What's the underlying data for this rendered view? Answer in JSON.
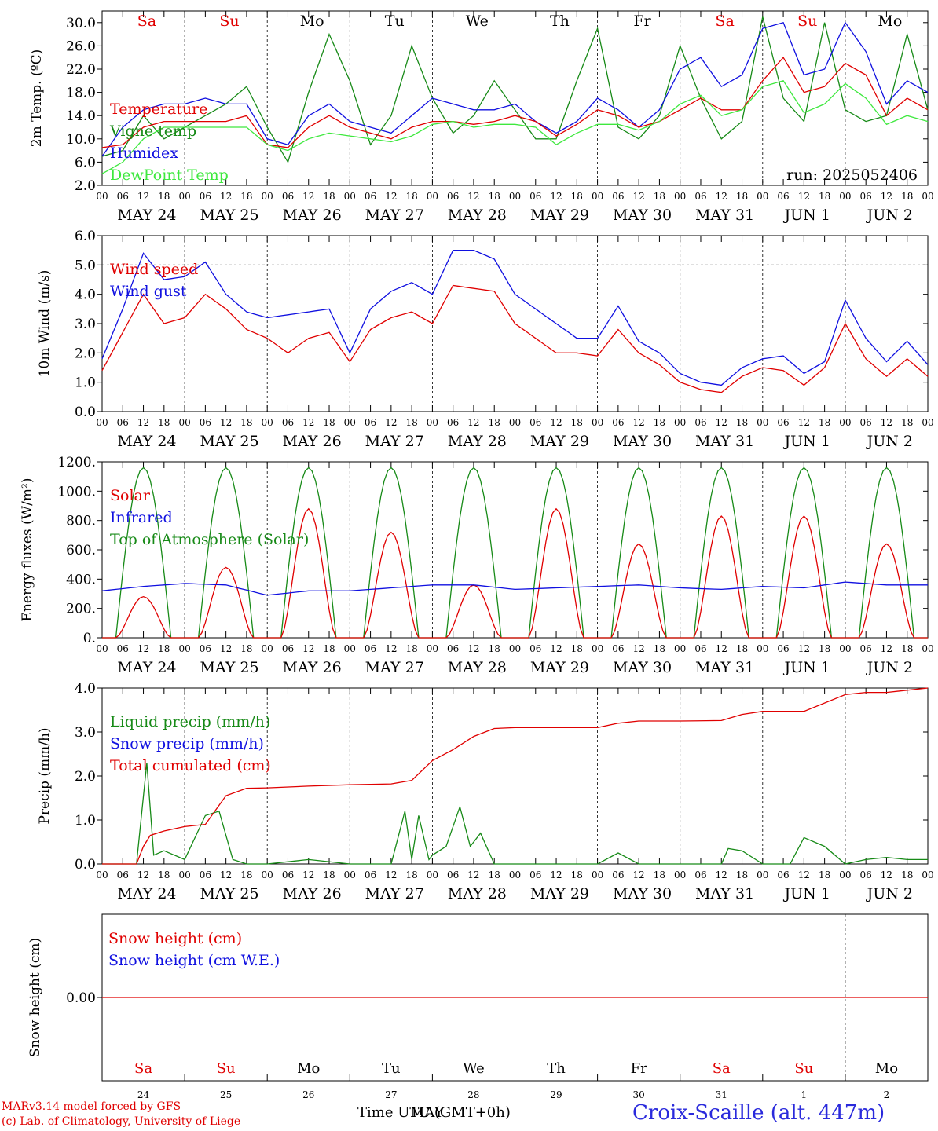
{
  "run_label": "run: 2025052406",
  "days": {
    "weekday_top": [
      "Sa",
      "Su",
      "Mo",
      "Tu",
      "We",
      "Th",
      "Fr",
      "Sa",
      "Su",
      "Mo"
    ],
    "weekday_colors": [
      "#e00000",
      "#e00000",
      "#000000",
      "#000000",
      "#000000",
      "#000000",
      "#000000",
      "#e00000",
      "#e00000",
      "#000000"
    ],
    "date_labels": [
      "MAY 24",
      "MAY 25",
      "MAY 26",
      "MAY 27",
      "MAY 28",
      "MAY 29",
      "MAY 30",
      "MAY 31",
      "JUN  1",
      "JUN  2"
    ],
    "hour_ticks": [
      "00",
      "06",
      "12",
      "18"
    ],
    "day_numbers": [
      "24",
      "25",
      "26",
      "27",
      "28",
      "29",
      "30",
      "31",
      "1",
      "2"
    ]
  },
  "footer": {
    "model": "MARv3.14 model forced by GFS",
    "lab": "(c) Lab. of Climatology, University of Liege",
    "time_axis": "Time UTC (GMT+0h)",
    "time_axis_overlap": "MAY",
    "station": "Croix-Scaille (alt. 447m)"
  },
  "colors": {
    "red": "#e00000",
    "green": "#178a17",
    "blue": "#1010e0",
    "lightgreen": "#3ee83e",
    "station": "#2a2adc"
  },
  "chart_data": [
    {
      "type": "line",
      "ylabel": "2m Temp. (ºC)",
      "ylim": [
        2,
        32
      ],
      "yticks": [
        "2.0",
        "6.0",
        "10.0",
        "14.0",
        "18.0",
        "22.0",
        "26.0",
        "30.0"
      ],
      "ytick_values": [
        2,
        6,
        10,
        14,
        18,
        22,
        26,
        30
      ],
      "x_hours": [
        0,
        6,
        12,
        18,
        24,
        30,
        36,
        42,
        48,
        54,
        60,
        66,
        72,
        78,
        84,
        90,
        96,
        102,
        108,
        114,
        120,
        126,
        132,
        138,
        144,
        150,
        156,
        162,
        168,
        174,
        180,
        186,
        192,
        198,
        204,
        210,
        216,
        222,
        228,
        234,
        240
      ],
      "legend": [
        {
          "name": "Temperature",
          "color": "#e00000"
        },
        {
          "name": "Vigne temp",
          "color": "#178a17"
        },
        {
          "name": "Humidex",
          "color": "#1010e0"
        },
        {
          "name": "DewPoint Temp",
          "color": "#3ee83e"
        }
      ],
      "series": [
        {
          "name": "Vigne temp",
          "color": "#178a17",
          "values": [
            7,
            8,
            14,
            10,
            12,
            14,
            16,
            19,
            12,
            6,
            18,
            28,
            20,
            9,
            14,
            26,
            17,
            11,
            14,
            20,
            15,
            10,
            10,
            20,
            29,
            12,
            10,
            14,
            26,
            17,
            10,
            13,
            31,
            17,
            13,
            30,
            15,
            13,
            14,
            28,
            15
          ]
        },
        {
          "name": "Humidex",
          "color": "#1010e0",
          "values": [
            7,
            12,
            15,
            16,
            16,
            17,
            16,
            16,
            10,
            9,
            14,
            16,
            13,
            12,
            11,
            14,
            17,
            16,
            15,
            15,
            16,
            13,
            11,
            13,
            17,
            15,
            12,
            15,
            22,
            24,
            19,
            21,
            29,
            30,
            21,
            22,
            30,
            25,
            16,
            20,
            18
          ]
        },
        {
          "name": "Temperature",
          "color": "#e00000",
          "values": [
            8.5,
            9,
            12,
            13,
            13,
            13,
            13,
            14,
            9,
            8.5,
            12,
            14,
            12,
            11,
            10,
            12,
            13,
            13,
            12.5,
            13,
            14,
            13,
            10.5,
            12.5,
            15,
            14,
            12,
            13,
            15,
            17,
            15,
            15,
            20,
            24,
            18,
            19,
            23,
            21,
            14,
            17,
            15
          ]
        },
        {
          "name": "DewPoint Temp",
          "color": "#3ee83e",
          "values": [
            4,
            6,
            10,
            12,
            12,
            12,
            12,
            12,
            9,
            8,
            10,
            11,
            10.5,
            10,
            9.5,
            10.5,
            12.5,
            13,
            12,
            12.5,
            12.5,
            12,
            9,
            11,
            12.5,
            12.5,
            11.5,
            13,
            16,
            17.5,
            14,
            15,
            19,
            20,
            14.5,
            16,
            19.5,
            17,
            12.5,
            14,
            13
          ]
        }
      ]
    },
    {
      "type": "line",
      "ylabel": "10m Wind (m/s)",
      "ylim": [
        0,
        6
      ],
      "yticks": [
        "0.0",
        "1.0",
        "2.0",
        "3.0",
        "4.0",
        "5.0",
        "6.0"
      ],
      "ytick_values": [
        0,
        1,
        2,
        3,
        4,
        5,
        6
      ],
      "reference_line": 5,
      "x_hours": [
        0,
        6,
        12,
        18,
        24,
        30,
        36,
        42,
        48,
        54,
        60,
        66,
        72,
        78,
        84,
        90,
        96,
        102,
        108,
        114,
        120,
        126,
        132,
        138,
        144,
        150,
        156,
        162,
        168,
        174,
        180,
        186,
        192,
        198,
        204,
        210,
        216,
        222,
        228,
        234,
        240
      ],
      "legend": [
        {
          "name": "Wind speed",
          "color": "#e00000"
        },
        {
          "name": "Wind gust",
          "color": "#1010e0"
        }
      ],
      "series": [
        {
          "name": "Wind gust",
          "color": "#1010e0",
          "values": [
            1.8,
            3.5,
            5.4,
            4.5,
            4.6,
            5.1,
            4,
            3.4,
            3.2,
            3.3,
            3.4,
            3.5,
            2,
            3.5,
            4.1,
            4.4,
            4,
            5.5,
            5.5,
            5.2,
            4,
            3.5,
            3,
            2.5,
            2.5,
            3.6,
            2.4,
            2,
            1.3,
            1,
            0.9,
            1.5,
            1.8,
            1.9,
            1.3,
            1.7,
            3.8,
            2.5,
            1.7,
            2.4,
            1.6
          ]
        },
        {
          "name": "Wind speed",
          "color": "#e00000",
          "values": [
            1.4,
            2.7,
            4,
            3,
            3.2,
            4,
            3.5,
            2.8,
            2.5,
            2,
            2.5,
            2.7,
            1.7,
            2.8,
            3.2,
            3.4,
            3,
            4.3,
            4.2,
            4.1,
            3,
            2.5,
            2,
            2,
            1.9,
            2.8,
            2,
            1.6,
            1,
            0.75,
            0.65,
            1.2,
            1.5,
            1.4,
            0.9,
            1.5,
            3,
            1.8,
            1.2,
            1.8,
            1.2
          ]
        }
      ]
    },
    {
      "type": "line",
      "ylabel": "Energy fluxes (W/m²)",
      "ylim": [
        0,
        1200
      ],
      "yticks": [
        "0.",
        "200.",
        "400.",
        "600.",
        "800.",
        "1000.",
        "1200."
      ],
      "ytick_values": [
        0,
        200,
        400,
        600,
        800,
        1000,
        1200
      ],
      "legend": [
        {
          "name": "Solar",
          "color": "#e00000"
        },
        {
          "name": "Infrared",
          "color": "#1010e0"
        },
        {
          "name": "Top of Atmosphere (Solar)",
          "color": "#178a17"
        }
      ],
      "toa_daily": {
        "rise_hour": 4,
        "set_hour": 20,
        "peak": 1160
      },
      "solar_daily_peaks": [
        280,
        480,
        880,
        720,
        360,
        880,
        640,
        830,
        830,
        640
      ],
      "infrared_x_hours": [
        0,
        12,
        24,
        36,
        48,
        60,
        72,
        84,
        96,
        108,
        120,
        132,
        144,
        156,
        168,
        180,
        192,
        204,
        216,
        228,
        240
      ],
      "infrared_values": [
        320,
        350,
        370,
        360,
        290,
        320,
        320,
        340,
        360,
        360,
        330,
        340,
        350,
        360,
        340,
        330,
        350,
        340,
        380,
        360,
        360
      ]
    },
    {
      "type": "line",
      "ylabel": "Precip (mm/h)",
      "ylim": [
        0,
        4
      ],
      "yticks": [
        "0.0",
        "1.0",
        "2.0",
        "3.0",
        "4.0"
      ],
      "ytick_values": [
        0,
        1,
        2,
        3,
        4
      ],
      "legend": [
        {
          "name": "Liquid precip (mm/h)",
          "color": "#178a17"
        },
        {
          "name": "Snow precip (mm/h)",
          "color": "#1010e0"
        },
        {
          "name": "Total cumulated (cm)",
          "color": "#e00000"
        }
      ],
      "series": [
        {
          "name": "Liquid precip (mm/h)",
          "color": "#178a17",
          "x": [
            0,
            10,
            13,
            15,
            18,
            24,
            30,
            34,
            38,
            42,
            48,
            60,
            72,
            84,
            88,
            90,
            92,
            95,
            96,
            100,
            104,
            107,
            110,
            114,
            120,
            144,
            150,
            156,
            168,
            180,
            182,
            186,
            192,
            200,
            204,
            210,
            216,
            222,
            228,
            234,
            240
          ],
          "values": [
            0,
            0,
            2.3,
            0.2,
            0.3,
            0.1,
            1.1,
            1.2,
            0.1,
            0,
            0,
            0.1,
            0,
            0,
            1.2,
            0.1,
            1.1,
            0.1,
            0.2,
            0.4,
            1.3,
            0.4,
            0.7,
            0,
            0,
            0,
            0.25,
            0,
            0,
            0,
            0.35,
            0.3,
            0,
            0,
            0.6,
            0.4,
            0,
            0.1,
            0.15,
            0.1,
            0.1
          ]
        },
        {
          "name": "Total cumulated (cm)",
          "color": "#e00000",
          "x": [
            0,
            10,
            12,
            14,
            18,
            24,
            30,
            36,
            42,
            48,
            60,
            72,
            84,
            90,
            96,
            102,
            108,
            114,
            120,
            144,
            150,
            156,
            168,
            180,
            186,
            192,
            204,
            216,
            222,
            228,
            240
          ],
          "values": [
            0,
            0,
            0.4,
            0.65,
            0.75,
            0.85,
            0.9,
            1.55,
            1.72,
            1.73,
            1.77,
            1.8,
            1.82,
            1.9,
            2.35,
            2.6,
            2.9,
            3.08,
            3.1,
            3.1,
            3.2,
            3.25,
            3.25,
            3.26,
            3.4,
            3.47,
            3.47,
            3.85,
            3.9,
            3.9,
            4.0
          ]
        }
      ]
    },
    {
      "type": "line",
      "ylabel": "Snow height (cm)",
      "yticks": [
        "0.00"
      ],
      "ytick_values": [
        0
      ],
      "legend": [
        {
          "name": "Snow height (cm)",
          "color": "#e00000"
        },
        {
          "name": "Snow height (cm W.E.)",
          "color": "#1010e0"
        }
      ],
      "series": [
        {
          "name": "Snow height (cm)",
          "color": "#e00000",
          "x": [
            0,
            240
          ],
          "values": [
            0,
            0
          ]
        }
      ]
    }
  ]
}
